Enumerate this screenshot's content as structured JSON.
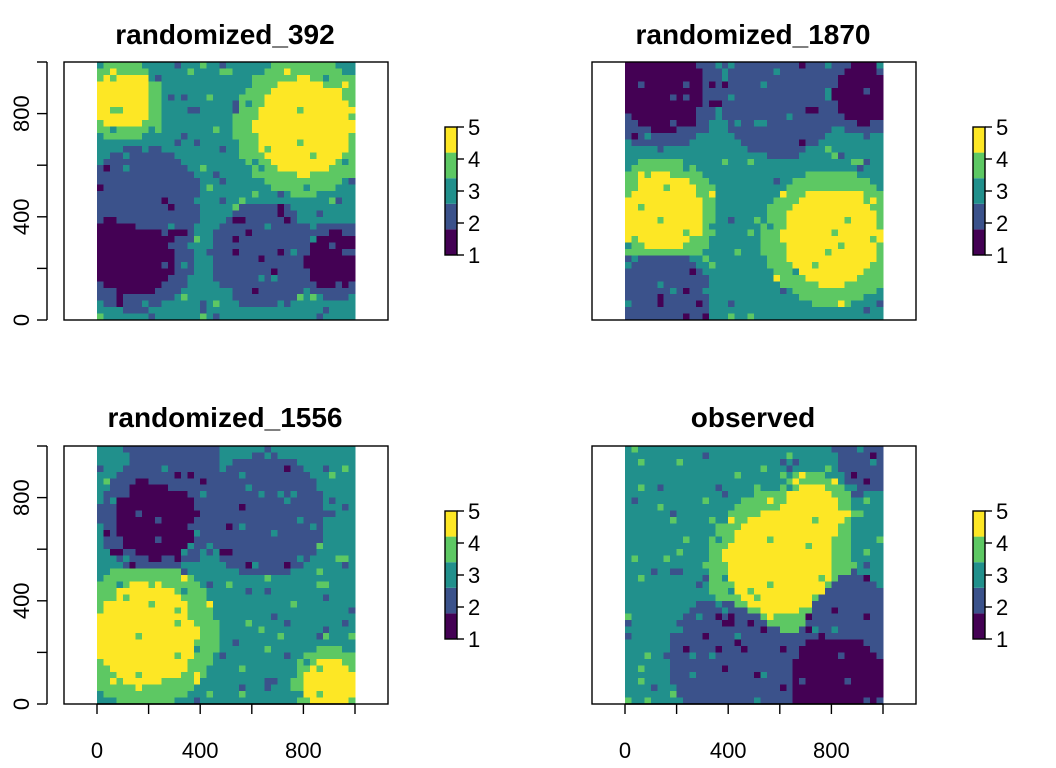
{
  "palette": [
    "#440154",
    "#3B528B",
    "#21908C",
    "#5DC863",
    "#FDE725"
  ],
  "chart_data": [
    {
      "type": "heatmap",
      "title": "randomized_392",
      "xlim": [
        0,
        1000
      ],
      "ylim": [
        0,
        1000
      ],
      "yticks": [
        "0",
        "400",
        "800"
      ],
      "xticks": [],
      "legend": {
        "values": [
          "1",
          "2",
          "3",
          "4",
          "5"
        ],
        "placement": "right"
      },
      "grid_size": [
        40,
        40
      ],
      "blobs": [
        {
          "value": 5,
          "cx": 800,
          "cy": 750,
          "r": 190
        },
        {
          "value": 5,
          "cx": 100,
          "cy": 850,
          "r": 110
        },
        {
          "value": 1,
          "cx": 140,
          "cy": 270,
          "r": 170
        },
        {
          "value": 1,
          "cx": 920,
          "cy": 230,
          "r": 110
        },
        {
          "value": 2,
          "cx": 180,
          "cy": 450,
          "r": 160
        },
        {
          "value": 2,
          "cx": 650,
          "cy": 250,
          "r": 150
        }
      ]
    },
    {
      "type": "heatmap",
      "title": "randomized_1870",
      "xlim": [
        0,
        1000
      ],
      "ylim": [
        0,
        1000
      ],
      "yticks": [],
      "xticks": [],
      "legend": {
        "values": [
          "1",
          "2",
          "3",
          "4",
          "5"
        ],
        "placement": "right"
      },
      "grid_size": [
        40,
        40
      ],
      "blobs": [
        {
          "value": 5,
          "cx": 150,
          "cy": 420,
          "r": 150
        },
        {
          "value": 5,
          "cx": 800,
          "cy": 320,
          "r": 190
        },
        {
          "value": 1,
          "cx": 140,
          "cy": 900,
          "r": 170
        },
        {
          "value": 1,
          "cx": 930,
          "cy": 880,
          "r": 120
        },
        {
          "value": 2,
          "cx": 600,
          "cy": 850,
          "r": 160
        },
        {
          "value": 2,
          "cx": 150,
          "cy": 90,
          "r": 130
        }
      ]
    },
    {
      "type": "heatmap",
      "title": "randomized_1556",
      "xlim": [
        0,
        1000
      ],
      "ylim": [
        0,
        1000
      ],
      "yticks": [
        "0",
        "400",
        "800"
      ],
      "xticks": [
        "0",
        "400",
        "800"
      ],
      "legend": {
        "values": [
          "1",
          "2",
          "3",
          "4",
          "5"
        ],
        "placement": "right"
      },
      "grid_size": [
        40,
        40
      ],
      "blobs": [
        {
          "value": 5,
          "cx": 190,
          "cy": 270,
          "r": 200
        },
        {
          "value": 5,
          "cx": 900,
          "cy": 80,
          "r": 100
        },
        {
          "value": 1,
          "cx": 230,
          "cy": 720,
          "r": 160
        },
        {
          "value": 2,
          "cx": 650,
          "cy": 730,
          "r": 170
        },
        {
          "value": 2,
          "cx": 300,
          "cy": 930,
          "r": 130
        }
      ]
    },
    {
      "type": "heatmap",
      "title": "observed",
      "xlim": [
        0,
        1000
      ],
      "ylim": [
        0,
        1000
      ],
      "yticks": [],
      "xticks": [
        "0",
        "400",
        "800"
      ],
      "legend": {
        "values": [
          "1",
          "2",
          "3",
          "4",
          "5"
        ],
        "placement": "right"
      },
      "grid_size": [
        40,
        40
      ],
      "blobs": [
        {
          "value": 5,
          "cx": 600,
          "cy": 550,
          "r": 200
        },
        {
          "value": 5,
          "cx": 720,
          "cy": 730,
          "r": 120
        },
        {
          "value": 1,
          "cx": 820,
          "cy": 100,
          "r": 180
        },
        {
          "value": 2,
          "cx": 400,
          "cy": 180,
          "r": 170
        },
        {
          "value": 2,
          "cx": 850,
          "cy": 350,
          "r": 120
        },
        {
          "value": 2,
          "cx": 950,
          "cy": 950,
          "r": 90
        }
      ]
    }
  ]
}
